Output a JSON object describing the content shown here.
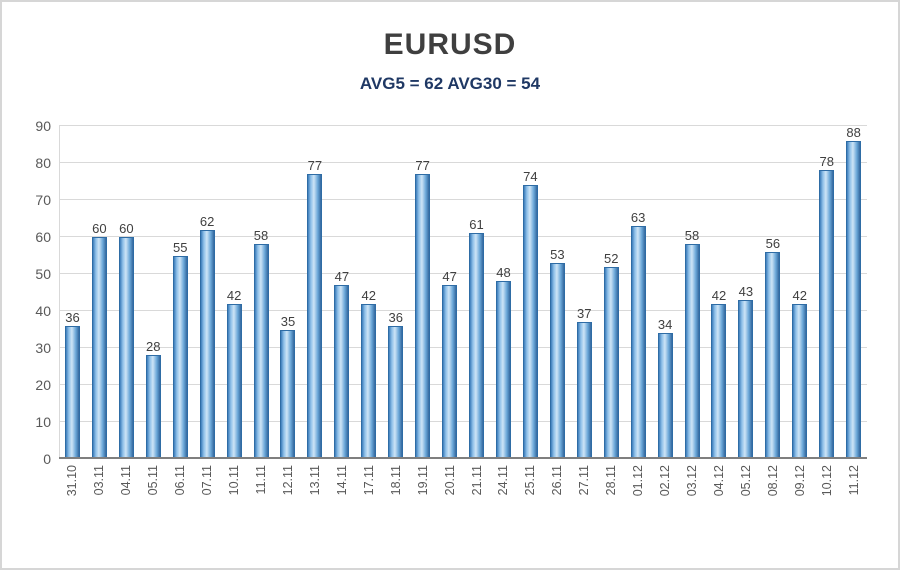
{
  "chart_data": {
    "type": "bar",
    "title": "EURUSD",
    "subtitle": "AVG5 = 62 AVG30 = 54",
    "categories": [
      "31.10",
      "03.11",
      "04.11",
      "05.11",
      "06.11",
      "07.11",
      "10.11",
      "11.11",
      "12.11",
      "13.11",
      "14.11",
      "17.11",
      "18.11",
      "19.11",
      "20.11",
      "21.11",
      "24.11",
      "25.11",
      "26.11",
      "27.11",
      "28.11",
      "01.12",
      "02.12",
      "03.12",
      "04.12",
      "05.12",
      "08.12",
      "09.12",
      "10.12",
      "11.12"
    ],
    "values": [
      36,
      60,
      60,
      28,
      55,
      62,
      42,
      58,
      35,
      77,
      47,
      42,
      36,
      77,
      47,
      61,
      48,
      74,
      53,
      37,
      52,
      63,
      34,
      58,
      42,
      43,
      56,
      42,
      78,
      88
    ],
    "xlabel": "",
    "ylabel": "",
    "ylim": [
      0,
      90
    ],
    "ytick_step": 10,
    "grid": true,
    "legend": "none",
    "colors": {
      "bar_fill_light": "#cde4f6",
      "bar_fill_mid": "#6ba7d8",
      "bar_fill_dark": "#35699f",
      "bar_edge": "#2e6ca5",
      "gridline": "#d9d9d9",
      "axis_line": "#7f7f7f",
      "title_text": "#3f3f3f",
      "subtitle_text": "#1f3864",
      "tick_text": "#595959",
      "value_label_text": "#404040"
    }
  }
}
